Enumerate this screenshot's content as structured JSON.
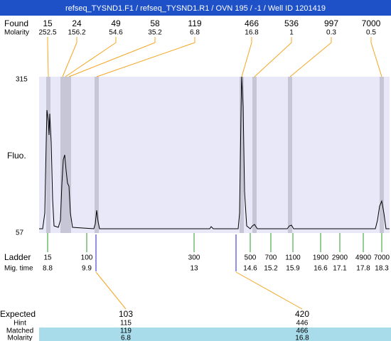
{
  "title": "refseq_TYSND1.F1 / refseq_TYSND1.R1 / OVN 195 / -1 / Well ID 1201419",
  "found": {
    "label": "Found",
    "molarity_label": "Molarity",
    "peaks": [
      {
        "size": 15,
        "molarity": 252.5
      },
      {
        "size": 24,
        "molarity": 156.2
      },
      {
        "size": 49,
        "molarity": 54.6
      },
      {
        "size": 58,
        "molarity": 35.2
      },
      {
        "size": 119,
        "molarity": 6.8
      },
      {
        "size": 466,
        "molarity": 16.8
      },
      {
        "size": 536,
        "molarity": 1
      },
      {
        "size": 997,
        "molarity": 0.3
      },
      {
        "size": 7000,
        "molarity": 0.5
      }
    ]
  },
  "y_axis": {
    "label": "Fluo.",
    "max": 315,
    "min": 57
  },
  "ladder": {
    "label": "Ladder",
    "mig_label": "Mig. time",
    "items": [
      {
        "size": 15,
        "time": 8.8
      },
      {
        "size": 100,
        "time": 9.9
      },
      {
        "size": 300,
        "time": 13
      },
      {
        "size": 500,
        "time": 14.6
      },
      {
        "size": 700,
        "time": 15.2
      },
      {
        "size": 1100,
        "time": 15.9
      },
      {
        "size": 1900,
        "time": 16.6
      },
      {
        "size": 2900,
        "time": 17.1
      },
      {
        "size": 4900,
        "time": 17.8
      },
      {
        "size": 7000,
        "time": 18.3
      }
    ]
  },
  "expected": {
    "label": "Expected",
    "hint_label": "Hint",
    "matched_label": "Matched",
    "molarity_label": "Molarity",
    "items": [
      {
        "expected": 103,
        "hint": 115,
        "matched": 119,
        "molarity": 6.8
      },
      {
        "expected": 420,
        "hint": 446,
        "matched": 466,
        "molarity": 16.8
      }
    ]
  }
}
